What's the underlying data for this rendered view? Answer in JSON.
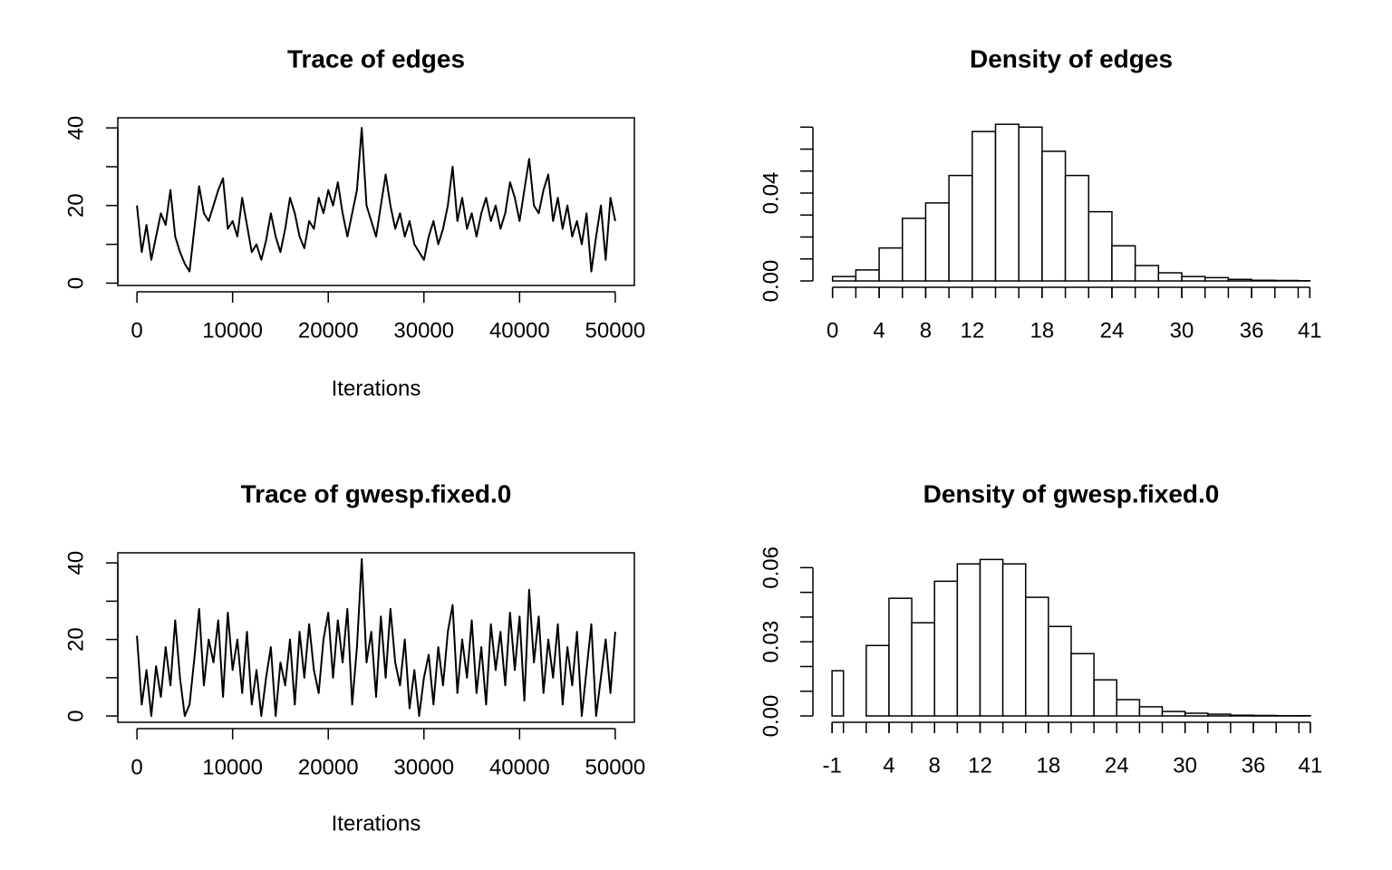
{
  "chart_data": [
    {
      "type": "line",
      "title": "Trace of edges",
      "x_label": "Iterations",
      "color": "#000000",
      "x": [
        0,
        500,
        1000,
        1500,
        2000,
        2500,
        3000,
        3500,
        4000,
        4500,
        5000,
        5500,
        6000,
        6500,
        7000,
        7500,
        8000,
        8500,
        9000,
        9500,
        10000,
        10500,
        11000,
        11500,
        12000,
        12500,
        13000,
        13500,
        14000,
        14500,
        15000,
        15500,
        16000,
        16500,
        17000,
        17500,
        18000,
        18500,
        19000,
        19500,
        20000,
        20500,
        21000,
        21500,
        22000,
        22500,
        23000,
        23500,
        24000,
        24500,
        25000,
        25500,
        26000,
        26500,
        27000,
        27500,
        28000,
        28500,
        29000,
        29500,
        30000,
        30500,
        31000,
        31500,
        32000,
        32500,
        33000,
        33500,
        34000,
        34500,
        35000,
        35500,
        36000,
        36500,
        37000,
        37500,
        38000,
        38500,
        39000,
        39500,
        40000,
        40500,
        41000,
        41500,
        42000,
        42500,
        43000,
        43500,
        44000,
        44500,
        45000,
        45500,
        46000,
        46500,
        47000,
        47500,
        48000,
        48500,
        49000,
        49500,
        50000
      ],
      "values": [
        20,
        8,
        15,
        6,
        12,
        18,
        15,
        24,
        12,
        8,
        5,
        3,
        14,
        25,
        18,
        16,
        20,
        24,
        27,
        14,
        16,
        12,
        22,
        15,
        8,
        10,
        6,
        11,
        18,
        12,
        8,
        14,
        22,
        18,
        12,
        9,
        16,
        14,
        22,
        18,
        24,
        20,
        26,
        18,
        12,
        18,
        24,
        40,
        20,
        16,
        12,
        20,
        28,
        20,
        14,
        18,
        12,
        16,
        10,
        8,
        6,
        12,
        16,
        10,
        14,
        20,
        30,
        16,
        22,
        14,
        18,
        12,
        18,
        22,
        16,
        20,
        14,
        18,
        26,
        22,
        16,
        24,
        32,
        20,
        18,
        24,
        28,
        16,
        22,
        14,
        20,
        12,
        16,
        10,
        18,
        3,
        12,
        20,
        6,
        22,
        16
      ],
      "xlim": [
        -2000,
        52000
      ],
      "ylim": [
        -0.6,
        42.6
      ],
      "xticks": [
        0,
        10000,
        20000,
        30000,
        40000,
        50000
      ],
      "yticks": [
        0,
        20,
        40
      ],
      "yminor_ticks": [
        10,
        30
      ]
    },
    {
      "type": "histogram",
      "title": "Density of edges",
      "color": "#ffffff",
      "bins": [
        0,
        2,
        4,
        6,
        8,
        10,
        12,
        14,
        16,
        18,
        20,
        22,
        24,
        26,
        28,
        30,
        32,
        34,
        36,
        38,
        40,
        41
      ],
      "values": [
        0.002,
        0.005,
        0.015,
        0.0285,
        0.0355,
        0.048,
        0.068,
        0.0713,
        0.07,
        0.059,
        0.048,
        0.0315,
        0.016,
        0.007,
        0.0037,
        0.002,
        0.0015,
        0.0007,
        0.0003,
        0.0002,
        0.0001
      ],
      "xlim": [
        -2,
        43
      ],
      "ylim": [
        0,
        0.074
      ],
      "xticks": [
        0,
        4,
        8,
        12,
        18,
        24,
        30,
        36,
        41
      ],
      "yticks": [
        {
          "value": 0,
          "label": "0.00"
        },
        {
          "value": 0.04,
          "label": "0.04"
        }
      ],
      "yminor_ticks": [
        0.01,
        0.02,
        0.03,
        0.05,
        0.06,
        0.07
      ]
    },
    {
      "type": "line",
      "title": "Trace of gwesp.fixed.0",
      "x_label": "Iterations",
      "color": "#000000",
      "x": [
        0,
        500,
        1000,
        1500,
        2000,
        2500,
        3000,
        3500,
        4000,
        4500,
        5000,
        5500,
        6000,
        6500,
        7000,
        7500,
        8000,
        8500,
        9000,
        9500,
        10000,
        10500,
        11000,
        11500,
        12000,
        12500,
        13000,
        13500,
        14000,
        14500,
        15000,
        15500,
        16000,
        16500,
        17000,
        17500,
        18000,
        18500,
        19000,
        19500,
        20000,
        20500,
        21000,
        21500,
        22000,
        22500,
        23000,
        23500,
        24000,
        24500,
        25000,
        25500,
        26000,
        26500,
        27000,
        27500,
        28000,
        28500,
        29000,
        29500,
        30000,
        30500,
        31000,
        31500,
        32000,
        32500,
        33000,
        33500,
        34000,
        34500,
        35000,
        35500,
        36000,
        36500,
        37000,
        37500,
        38000,
        38500,
        39000,
        39500,
        40000,
        40500,
        41000,
        41500,
        42000,
        42500,
        43000,
        43500,
        44000,
        44500,
        45000,
        45500,
        46000,
        46500,
        47000,
        47500,
        48000,
        48500,
        49000,
        49500,
        50000
      ],
      "values": [
        21,
        3,
        12,
        0,
        13,
        5,
        18,
        8,
        25,
        10,
        0,
        3,
        15,
        28,
        8,
        20,
        14,
        25,
        5,
        27,
        12,
        20,
        6,
        22,
        3,
        12,
        0,
        10,
        18,
        0,
        14,
        8,
        20,
        3,
        22,
        10,
        24,
        12,
        6,
        20,
        27,
        10,
        25,
        14,
        28,
        3,
        18,
        41,
        14,
        22,
        5,
        26,
        10,
        28,
        14,
        8,
        20,
        2,
        12,
        0,
        10,
        16,
        3,
        18,
        8,
        22,
        29,
        6,
        20,
        10,
        25,
        6,
        18,
        3,
        24,
        12,
        22,
        8,
        27,
        12,
        26,
        4,
        33,
        14,
        26,
        6,
        20,
        10,
        24,
        3,
        18,
        8,
        22,
        0,
        12,
        24,
        0,
        10,
        20,
        6,
        22
      ],
      "xlim": [
        -2000,
        52000
      ],
      "ylim": [
        -1.64,
        42.64
      ],
      "xticks": [
        0,
        10000,
        20000,
        30000,
        40000,
        50000
      ],
      "yticks": [
        0,
        20,
        40
      ],
      "yminor_ticks": [
        10,
        30
      ]
    },
    {
      "type": "histogram",
      "title": "Density of gwesp.fixed.0",
      "color": "#ffffff",
      "bins": [
        -1,
        0,
        2,
        4,
        6,
        8,
        10,
        12,
        14,
        16,
        18,
        20,
        22,
        24,
        26,
        28,
        30,
        32,
        34,
        36,
        38,
        40,
        41
      ],
      "values": [
        0.0183,
        0,
        0.0285,
        0.0476,
        0.0377,
        0.0545,
        0.0615,
        0.0633,
        0.0615,
        0.048,
        0.0362,
        0.0252,
        0.0146,
        0.0066,
        0.0037,
        0.0018,
        0.0011,
        0.0007,
        0.0003,
        0.0002,
        0.0001,
        0.0001
      ],
      "xlim": [
        -3,
        43
      ],
      "ylim": [
        0,
        0.066
      ],
      "xticks": [
        -1,
        4,
        8,
        12,
        18,
        24,
        30,
        36,
        41
      ],
      "yticks": [
        {
          "value": 0,
          "label": "0.00"
        },
        {
          "value": 0.03,
          "label": "0.03"
        },
        {
          "value": 0.06,
          "label": "0.06"
        }
      ],
      "yminor_ticks": [
        0.01,
        0.02,
        0.04,
        0.05
      ]
    }
  ]
}
